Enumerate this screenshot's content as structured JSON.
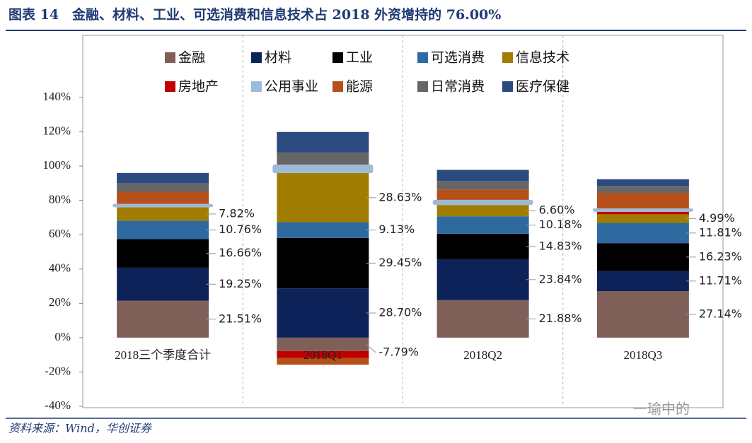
{
  "chart_data": {
    "type": "stacked_bar",
    "title": "图表 14　金融、材料、工业、可选消费和信息技术占 2018 外资增持的 76.00%",
    "categories": [
      "2018三个季度合计",
      "2018Q1",
      "2018Q2",
      "2018Q3"
    ],
    "series": [
      {
        "name": "金融",
        "color": "#7f6059",
        "values": [
          21.51,
          -7.79,
          21.88,
          27.14
        ],
        "value_labels": [
          "21.51%",
          "-7.79%",
          "21.88%",
          "27.14%"
        ]
      },
      {
        "name": "材料",
        "color": "#0d2259",
        "values": [
          19.25,
          28.7,
          23.84,
          11.71
        ],
        "value_labels": [
          "19.25%",
          "28.70%",
          "23.84%",
          "11.71%"
        ]
      },
      {
        "name": "工业",
        "color": "#000000",
        "values": [
          16.66,
          29.45,
          14.83,
          16.23
        ],
        "value_labels": [
          "16.66%",
          "29.45%",
          "14.83%",
          "16.23%"
        ]
      },
      {
        "name": "可选消费",
        "color": "#2e6aa0",
        "values": [
          10.76,
          9.13,
          10.18,
          11.81
        ],
        "value_labels": [
          "10.76%",
          "9.13%",
          "10.18%",
          "11.81%"
        ]
      },
      {
        "name": "信息技术",
        "color": "#a07d00",
        "values": [
          7.82,
          28.63,
          6.6,
          4.99
        ],
        "value_labels": [
          "7.82%",
          "28.63%",
          "6.60%",
          "4.99%"
        ]
      },
      {
        "name": "房地产",
        "color": "#c00000",
        "values": [
          0,
          -4,
          0,
          1.5
        ]
      },
      {
        "name": "公用事业",
        "color": "#9dbad8",
        "values": [
          2,
          5,
          3,
          2
        ]
      },
      {
        "name": "能源",
        "color": "#b5501a",
        "values": [
          7,
          -4,
          6,
          9
        ]
      },
      {
        "name": "日常消费",
        "color": "#666666",
        "values": [
          5,
          7,
          5,
          4
        ]
      },
      {
        "name": "医疗保健",
        "color": "#2b4a80",
        "values": [
          6,
          12,
          6.5,
          4
        ]
      }
    ],
    "ylim": [
      -40,
      140
    ],
    "yticks": [
      {
        "value": -40,
        "label": "-40%"
      },
      {
        "value": -20,
        "label": "-20%"
      },
      {
        "value": 0,
        "label": "0%"
      },
      {
        "value": 20,
        "label": "20%"
      },
      {
        "value": 40,
        "label": "40%"
      },
      {
        "value": 60,
        "label": "60%"
      },
      {
        "value": 80,
        "label": "80%"
      },
      {
        "value": 100,
        "label": "100%"
      },
      {
        "value": 120,
        "label": "120%"
      },
      {
        "value": 140,
        "label": "140%"
      }
    ],
    "grid": false,
    "legend": "top",
    "source": "资料来源：Wind，华创证券",
    "watermark": "一瑜中的"
  }
}
